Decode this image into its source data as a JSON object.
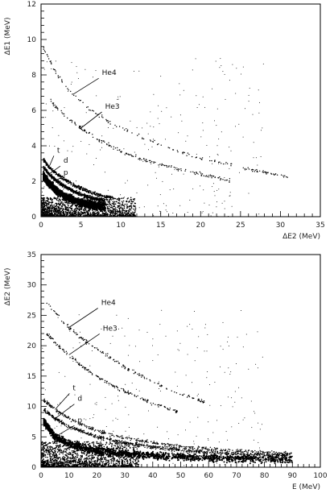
{
  "chart_data": [
    {
      "type": "scatter",
      "title": "",
      "xlabel": "ΔE2 (MeV)",
      "ylabel": "ΔE1 (MeV)",
      "xlim": [
        0,
        35
      ],
      "ylim": [
        0,
        12
      ],
      "x_ticks": [
        0,
        5,
        10,
        15,
        20,
        25,
        30,
        35
      ],
      "x_tick_labels": [
        "0",
        "5",
        "10",
        "15",
        "20",
        "25",
        "30",
        "35"
      ],
      "y_ticks": [
        0,
        2,
        4,
        6,
        8,
        10,
        12
      ],
      "y_tick_labels": [
        "0",
        "2",
        "4",
        "6",
        "8",
        "10",
        "12"
      ],
      "grid": false,
      "series": [
        {
          "name": "He4",
          "x": [
            0.3,
            2,
            4,
            6,
            8,
            10,
            13,
            16,
            20,
            24,
            28,
            31
          ],
          "y": [
            9.5,
            8.0,
            6.9,
            6.1,
            5.5,
            5.0,
            4.4,
            3.9,
            3.3,
            2.9,
            2.5,
            2.2
          ]
        },
        {
          "name": "He3",
          "x": [
            1,
            3,
            5,
            7,
            10,
            13,
            16,
            20,
            24
          ],
          "y": [
            6.6,
            5.7,
            5.0,
            4.4,
            3.7,
            3.2,
            2.8,
            2.4,
            2.0
          ]
        },
        {
          "name": "t",
          "x": [
            0.3,
            1,
            2,
            3,
            4,
            5,
            6,
            7,
            9
          ],
          "y": [
            3.2,
            2.8,
            2.4,
            2.1,
            1.8,
            1.6,
            1.4,
            1.25,
            1.05
          ]
        },
        {
          "name": "d",
          "x": [
            0.3,
            1,
            2,
            3,
            4,
            5,
            6,
            7,
            8
          ],
          "y": [
            2.8,
            2.4,
            2.0,
            1.7,
            1.45,
            1.25,
            1.1,
            0.98,
            0.9
          ]
        },
        {
          "name": "p",
          "x": [
            0.3,
            1,
            2,
            3,
            4,
            5,
            6,
            7,
            8
          ],
          "y": [
            2.3,
            1.9,
            1.45,
            1.15,
            0.95,
            0.8,
            0.7,
            0.62,
            0.55
          ]
        }
      ],
      "annotations": [
        "He4",
        "He3",
        "t",
        "d",
        "p"
      ]
    },
    {
      "type": "scatter",
      "title": "",
      "xlabel": "E (MeV)",
      "ylabel": "ΔE2 (MeV)",
      "xlim": [
        0,
        100
      ],
      "ylim": [
        0,
        35
      ],
      "x_ticks": [
        0,
        10,
        20,
        30,
        40,
        50,
        60,
        70,
        80,
        90,
        100
      ],
      "x_tick_labels": [
        "0",
        "10",
        "20",
        "30",
        "40",
        "50",
        "60",
        "70",
        "80",
        "90",
        "100"
      ],
      "y_ticks": [
        0,
        5,
        10,
        15,
        20,
        25,
        30,
        35
      ],
      "y_tick_labels": [
        "0",
        "5",
        "10",
        "15",
        "20",
        "25",
        "30",
        "35"
      ],
      "grid": false,
      "series": [
        {
          "name": "He4",
          "x": [
            2,
            5,
            10,
            15,
            20,
            30,
            40,
            50,
            60
          ],
          "y": [
            27,
            25.5,
            23,
            21,
            19.5,
            16.5,
            14,
            12,
            10.5
          ]
        },
        {
          "name": "He3",
          "x": [
            2,
            5,
            10,
            15,
            20,
            25,
            30,
            40,
            50
          ],
          "y": [
            22,
            20.5,
            18.5,
            16.5,
            15,
            13.5,
            12.5,
            10.5,
            9
          ]
        },
        {
          "name": "t",
          "x": [
            1,
            5,
            10,
            20,
            30,
            40,
            50,
            60,
            70,
            80,
            90
          ],
          "y": [
            11,
            9.5,
            8,
            6,
            4.8,
            4.0,
            3.4,
            3.0,
            2.7,
            2.4,
            2.2
          ]
        },
        {
          "name": "d",
          "x": [
            1,
            5,
            10,
            20,
            30,
            40,
            50,
            60,
            70,
            80,
            90
          ],
          "y": [
            9.5,
            8,
            6.7,
            5,
            4,
            3.3,
            2.8,
            2.5,
            2.2,
            2.0,
            1.9
          ]
        },
        {
          "name": "p",
          "x": [
            1,
            5,
            10,
            20,
            30,
            40,
            50,
            60,
            70,
            80,
            90
          ],
          "y": [
            7.5,
            5,
            3.8,
            2.7,
            2.2,
            1.9,
            1.7,
            1.55,
            1.45,
            1.35,
            1.3
          ]
        }
      ],
      "annotations": [
        "He4",
        "He3",
        "t",
        "d",
        "p"
      ]
    }
  ]
}
